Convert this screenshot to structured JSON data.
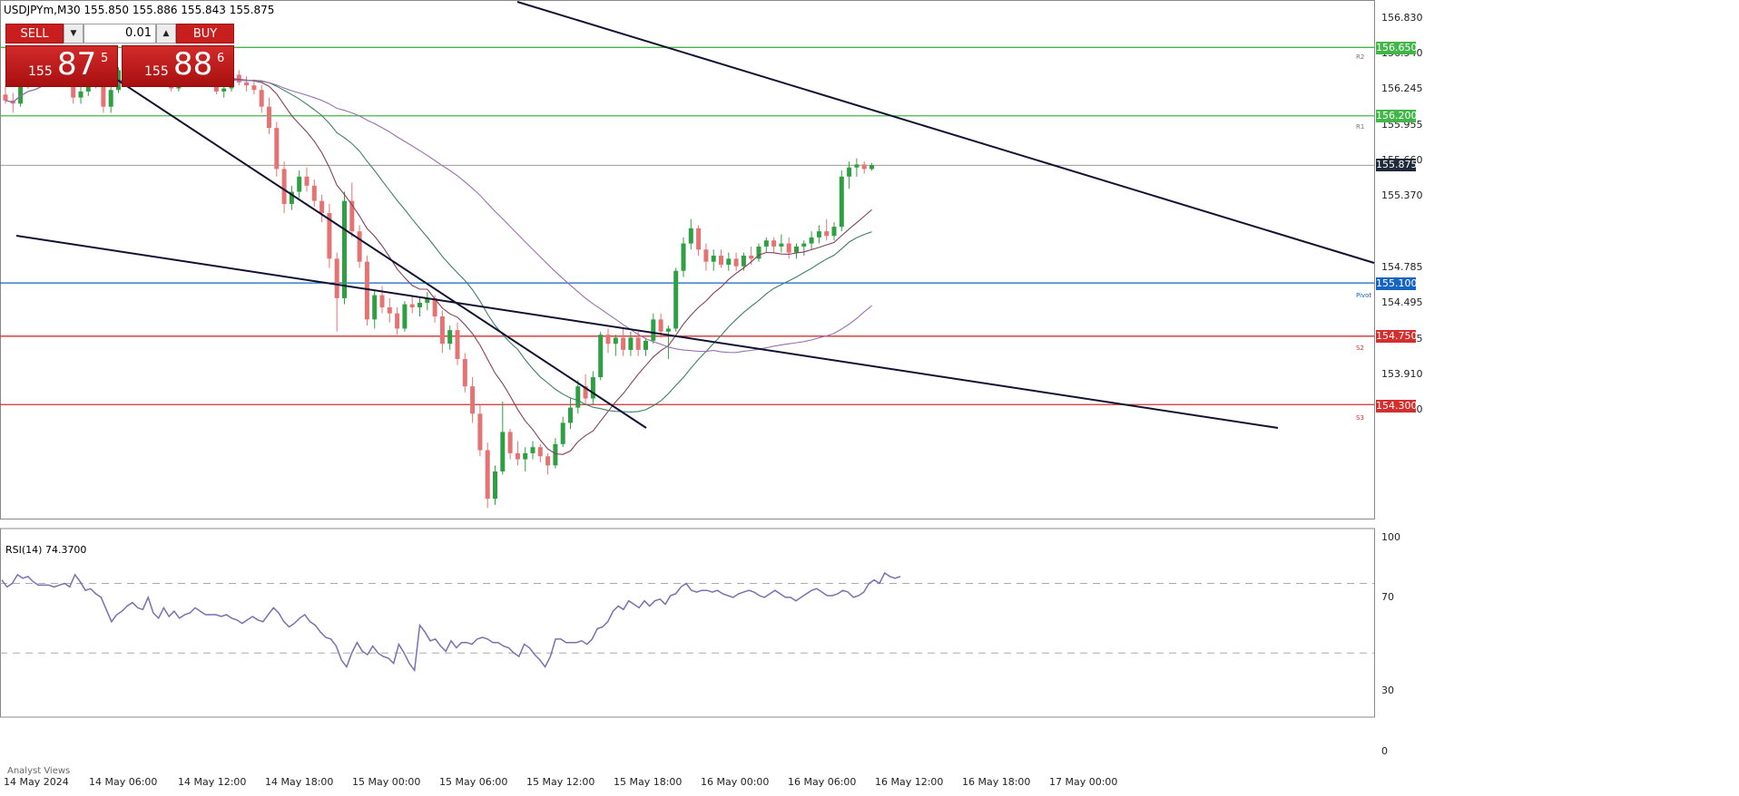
{
  "chart": {
    "title": "USDJPYm,M30  155.850 155.886 155.843 155.875",
    "current_price": "155.875"
  },
  "trade_panel": {
    "sell_label": "SELL",
    "buy_label": "BUY",
    "lot_size": "0.01",
    "sell_price_prefix": "155",
    "sell_price_big": "87",
    "sell_price_sup": "5",
    "buy_price_prefix": "155",
    "buy_price_big": "88",
    "buy_price_sup": "6"
  },
  "price_axis": [
    "156.830",
    "156.540",
    "156.245",
    "155.955",
    "155.660",
    "155.370",
    "154.785",
    "154.495",
    "154.205",
    "153.910",
    "153.620"
  ],
  "levels": [
    {
      "name": "R2",
      "value": "156.650",
      "color": "#43b649"
    },
    {
      "name": "R1",
      "value": "156.200",
      "color": "#43b649"
    },
    {
      "name": "Pivot",
      "value": "155.100",
      "color": "#1565c0"
    },
    {
      "name": "S2",
      "value": "154.750",
      "color": "#d32f2f"
    },
    {
      "name": "S3",
      "value": "154.300",
      "color": "#d32f2f"
    }
  ],
  "rsi": {
    "label": "RSI(14) 74.3700",
    "axis": [
      "100",
      "70",
      "30",
      "0"
    ]
  },
  "time_axis": [
    "14 May 2024",
    "14 May 06:00",
    "14 May 12:00",
    "14 May 18:00",
    "15 May 00:00",
    "15 May 06:00",
    "15 May 12:00",
    "15 May 18:00",
    "16 May 00:00",
    "16 May 06:00",
    "16 May 12:00",
    "16 May 18:00",
    "17 May 00:00"
  ],
  "analyst_label": "Analyst Views",
  "colors": {
    "bull": "#2ea043",
    "bear": "#e57373",
    "rsi_line": "#7a6fb0",
    "channel": "#111133"
  },
  "chart_data": {
    "type": "candlestick",
    "symbol": "USDJPYm",
    "timeframe": "M30",
    "y_range": [
      153.55,
      156.95
    ],
    "candles": [
      {
        "o": 156.34,
        "h": 156.4,
        "l": 156.28,
        "c": 156.3
      },
      {
        "o": 156.3,
        "h": 156.35,
        "l": 156.22,
        "c": 156.28
      },
      {
        "o": 156.28,
        "h": 156.44,
        "l": 156.26,
        "c": 156.41
      },
      {
        "o": 156.41,
        "h": 156.48,
        "l": 156.38,
        "c": 156.45
      },
      {
        "o": 156.45,
        "h": 156.5,
        "l": 156.4,
        "c": 156.43
      },
      {
        "o": 156.43,
        "h": 156.55,
        "l": 156.4,
        "c": 156.52
      },
      {
        "o": 156.52,
        "h": 156.6,
        "l": 156.48,
        "c": 156.57
      },
      {
        "o": 156.57,
        "h": 156.62,
        "l": 156.5,
        "c": 156.53
      },
      {
        "o": 156.53,
        "h": 156.58,
        "l": 156.42,
        "c": 156.45
      },
      {
        "o": 156.45,
        "h": 156.5,
        "l": 156.28,
        "c": 156.32
      },
      {
        "o": 156.32,
        "h": 156.4,
        "l": 156.28,
        "c": 156.36
      },
      {
        "o": 156.36,
        "h": 156.45,
        "l": 156.33,
        "c": 156.42
      },
      {
        "o": 156.42,
        "h": 156.48,
        "l": 156.38,
        "c": 156.4
      },
      {
        "o": 156.4,
        "h": 156.46,
        "l": 156.22,
        "c": 156.26
      },
      {
        "o": 156.26,
        "h": 156.4,
        "l": 156.22,
        "c": 156.37
      },
      {
        "o": 156.37,
        "h": 156.52,
        "l": 156.35,
        "c": 156.5
      },
      {
        "o": 156.5,
        "h": 156.58,
        "l": 156.46,
        "c": 156.55
      },
      {
        "o": 156.55,
        "h": 156.6,
        "l": 156.5,
        "c": 156.52
      },
      {
        "o": 156.52,
        "h": 156.56,
        "l": 156.46,
        "c": 156.48
      },
      {
        "o": 156.48,
        "h": 156.52,
        "l": 156.44,
        "c": 156.5
      },
      {
        "o": 156.5,
        "h": 156.54,
        "l": 156.44,
        "c": 156.46
      },
      {
        "o": 156.46,
        "h": 156.5,
        "l": 156.4,
        "c": 156.44
      },
      {
        "o": 156.44,
        "h": 156.48,
        "l": 156.36,
        "c": 156.38
      },
      {
        "o": 156.38,
        "h": 156.44,
        "l": 156.36,
        "c": 156.42
      },
      {
        "o": 156.42,
        "h": 156.48,
        "l": 156.4,
        "c": 156.45
      },
      {
        "o": 156.45,
        "h": 156.52,
        "l": 156.42,
        "c": 156.49
      },
      {
        "o": 156.49,
        "h": 156.58,
        "l": 156.46,
        "c": 156.55
      },
      {
        "o": 156.55,
        "h": 156.6,
        "l": 156.44,
        "c": 156.46
      },
      {
        "o": 156.46,
        "h": 156.5,
        "l": 156.34,
        "c": 156.36
      },
      {
        "o": 156.36,
        "h": 156.42,
        "l": 156.32,
        "c": 156.38
      },
      {
        "o": 156.38,
        "h": 156.5,
        "l": 156.36,
        "c": 156.47
      },
      {
        "o": 156.47,
        "h": 156.5,
        "l": 156.4,
        "c": 156.42
      },
      {
        "o": 156.42,
        "h": 156.46,
        "l": 156.36,
        "c": 156.4
      },
      {
        "o": 156.4,
        "h": 156.44,
        "l": 156.34,
        "c": 156.37
      },
      {
        "o": 156.37,
        "h": 156.4,
        "l": 156.22,
        "c": 156.26
      },
      {
        "o": 156.26,
        "h": 156.32,
        "l": 156.08,
        "c": 156.12
      },
      {
        "o": 156.12,
        "h": 156.16,
        "l": 155.8,
        "c": 155.85
      },
      {
        "o": 155.85,
        "h": 155.9,
        "l": 155.56,
        "c": 155.62
      },
      {
        "o": 155.62,
        "h": 155.74,
        "l": 155.58,
        "c": 155.7
      },
      {
        "o": 155.7,
        "h": 155.84,
        "l": 155.66,
        "c": 155.8
      },
      {
        "o": 155.8,
        "h": 155.86,
        "l": 155.7,
        "c": 155.74
      },
      {
        "o": 155.74,
        "h": 155.78,
        "l": 155.6,
        "c": 155.64
      },
      {
        "o": 155.64,
        "h": 155.68,
        "l": 155.5,
        "c": 155.56
      },
      {
        "o": 155.56,
        "h": 155.62,
        "l": 155.2,
        "c": 155.26
      },
      {
        "o": 155.26,
        "h": 155.3,
        "l": 154.78,
        "c": 155.0
      },
      {
        "o": 155.0,
        "h": 155.7,
        "l": 154.96,
        "c": 155.64
      },
      {
        "o": 155.64,
        "h": 155.76,
        "l": 155.4,
        "c": 155.44
      },
      {
        "o": 155.44,
        "h": 155.48,
        "l": 155.2,
        "c": 155.24
      },
      {
        "o": 155.24,
        "h": 155.28,
        "l": 154.82,
        "c": 154.86
      },
      {
        "o": 154.86,
        "h": 155.05,
        "l": 154.8,
        "c": 155.02
      },
      {
        "o": 155.02,
        "h": 155.08,
        "l": 154.9,
        "c": 154.94
      },
      {
        "o": 154.94,
        "h": 155.0,
        "l": 154.84,
        "c": 154.9
      },
      {
        "o": 154.9,
        "h": 154.94,
        "l": 154.76,
        "c": 154.8
      },
      {
        "o": 154.8,
        "h": 154.98,
        "l": 154.78,
        "c": 154.96
      },
      {
        "o": 154.96,
        "h": 155.02,
        "l": 154.9,
        "c": 154.94
      },
      {
        "o": 154.94,
        "h": 155.0,
        "l": 154.88,
        "c": 154.97
      },
      {
        "o": 154.97,
        "h": 155.04,
        "l": 154.92,
        "c": 155.0
      },
      {
        "o": 155.0,
        "h": 155.02,
        "l": 154.84,
        "c": 154.88
      },
      {
        "o": 154.88,
        "h": 154.92,
        "l": 154.64,
        "c": 154.7
      },
      {
        "o": 154.7,
        "h": 154.82,
        "l": 154.66,
        "c": 154.79
      },
      {
        "o": 154.79,
        "h": 154.84,
        "l": 154.56,
        "c": 154.6
      },
      {
        "o": 154.6,
        "h": 154.64,
        "l": 154.38,
        "c": 154.42
      },
      {
        "o": 154.42,
        "h": 154.48,
        "l": 154.18,
        "c": 154.24
      },
      {
        "o": 154.24,
        "h": 154.3,
        "l": 153.96,
        "c": 154.0
      },
      {
        "o": 154.0,
        "h": 154.05,
        "l": 153.62,
        "c": 153.68
      },
      {
        "o": 153.68,
        "h": 153.9,
        "l": 153.64,
        "c": 153.86
      },
      {
        "o": 153.86,
        "h": 154.32,
        "l": 153.84,
        "c": 154.12
      },
      {
        "o": 154.12,
        "h": 154.14,
        "l": 153.94,
        "c": 153.98
      },
      {
        "o": 153.98,
        "h": 154.06,
        "l": 153.9,
        "c": 153.94
      },
      {
        "o": 153.94,
        "h": 154.02,
        "l": 153.86,
        "c": 153.98
      },
      {
        "o": 153.98,
        "h": 154.06,
        "l": 153.94,
        "c": 154.02
      },
      {
        "o": 154.02,
        "h": 154.04,
        "l": 153.92,
        "c": 153.96
      },
      {
        "o": 153.96,
        "h": 153.98,
        "l": 153.84,
        "c": 153.9
      },
      {
        "o": 153.9,
        "h": 154.08,
        "l": 153.88,
        "c": 154.04
      },
      {
        "o": 154.04,
        "h": 154.22,
        "l": 154.02,
        "c": 154.18
      },
      {
        "o": 154.18,
        "h": 154.34,
        "l": 154.14,
        "c": 154.28
      },
      {
        "o": 154.28,
        "h": 154.46,
        "l": 154.24,
        "c": 154.42
      },
      {
        "o": 154.42,
        "h": 154.5,
        "l": 154.3,
        "c": 154.34
      },
      {
        "o": 154.34,
        "h": 154.52,
        "l": 154.3,
        "c": 154.48
      },
      {
        "o": 154.48,
        "h": 154.78,
        "l": 154.46,
        "c": 154.76
      },
      {
        "o": 154.76,
        "h": 154.8,
        "l": 154.64,
        "c": 154.7
      },
      {
        "o": 154.7,
        "h": 154.76,
        "l": 154.62,
        "c": 154.74
      },
      {
        "o": 154.74,
        "h": 154.8,
        "l": 154.62,
        "c": 154.66
      },
      {
        "o": 154.66,
        "h": 154.78,
        "l": 154.62,
        "c": 154.74
      },
      {
        "o": 154.74,
        "h": 154.78,
        "l": 154.62,
        "c": 154.66
      },
      {
        "o": 154.66,
        "h": 154.74,
        "l": 154.62,
        "c": 154.72
      },
      {
        "o": 154.72,
        "h": 154.9,
        "l": 154.7,
        "c": 154.86
      },
      {
        "o": 154.86,
        "h": 154.9,
        "l": 154.74,
        "c": 154.78
      },
      {
        "o": 154.78,
        "h": 154.82,
        "l": 154.6,
        "c": 154.8
      },
      {
        "o": 154.8,
        "h": 155.2,
        "l": 154.78,
        "c": 155.18
      },
      {
        "o": 155.18,
        "h": 155.4,
        "l": 155.14,
        "c": 155.36
      },
      {
        "o": 155.36,
        "h": 155.52,
        "l": 155.32,
        "c": 155.46
      },
      {
        "o": 155.46,
        "h": 155.48,
        "l": 155.28,
        "c": 155.32
      },
      {
        "o": 155.32,
        "h": 155.36,
        "l": 155.18,
        "c": 155.24
      },
      {
        "o": 155.24,
        "h": 155.32,
        "l": 155.18,
        "c": 155.28
      },
      {
        "o": 155.28,
        "h": 155.32,
        "l": 155.2,
        "c": 155.22
      },
      {
        "o": 155.22,
        "h": 155.3,
        "l": 155.18,
        "c": 155.26
      },
      {
        "o": 155.26,
        "h": 155.3,
        "l": 155.18,
        "c": 155.21
      },
      {
        "o": 155.21,
        "h": 155.3,
        "l": 155.18,
        "c": 155.28
      },
      {
        "o": 155.28,
        "h": 155.34,
        "l": 155.22,
        "c": 155.26
      },
      {
        "o": 155.26,
        "h": 155.36,
        "l": 155.24,
        "c": 155.34
      },
      {
        "o": 155.34,
        "h": 155.4,
        "l": 155.3,
        "c": 155.38
      },
      {
        "o": 155.38,
        "h": 155.4,
        "l": 155.3,
        "c": 155.34
      },
      {
        "o": 155.34,
        "h": 155.42,
        "l": 155.3,
        "c": 155.36
      },
      {
        "o": 155.36,
        "h": 155.4,
        "l": 155.26,
        "c": 155.3
      },
      {
        "o": 155.3,
        "h": 155.36,
        "l": 155.26,
        "c": 155.34
      },
      {
        "o": 155.34,
        "h": 155.38,
        "l": 155.28,
        "c": 155.36
      },
      {
        "o": 155.36,
        "h": 155.44,
        "l": 155.32,
        "c": 155.4
      },
      {
        "o": 155.4,
        "h": 155.48,
        "l": 155.36,
        "c": 155.44
      },
      {
        "o": 155.44,
        "h": 155.52,
        "l": 155.38,
        "c": 155.41
      },
      {
        "o": 155.41,
        "h": 155.5,
        "l": 155.38,
        "c": 155.47
      },
      {
        "o": 155.47,
        "h": 155.84,
        "l": 155.44,
        "c": 155.8
      },
      {
        "o": 155.8,
        "h": 155.9,
        "l": 155.72,
        "c": 155.86
      },
      {
        "o": 155.86,
        "h": 155.92,
        "l": 155.8,
        "c": 155.88
      },
      {
        "o": 155.88,
        "h": 155.9,
        "l": 155.82,
        "c": 155.85
      },
      {
        "o": 155.85,
        "h": 155.89,
        "l": 155.84,
        "c": 155.875
      }
    ],
    "rsi_values": [
      72,
      68,
      70,
      75,
      73,
      74,
      71,
      69,
      69,
      69,
      68,
      69,
      70,
      68,
      75,
      71,
      66,
      67,
      64,
      62,
      55,
      48,
      52,
      54,
      57,
      59,
      56,
      55,
      62,
      53,
      50,
      56,
      51,
      54,
      50,
      52,
      53,
      56,
      54,
      52,
      52,
      52,
      51,
      52,
      50,
      49,
      47,
      49,
      51,
      49,
      48,
      52,
      56,
      53,
      48,
      45,
      47,
      50,
      52,
      48,
      46,
      42,
      39,
      38,
      34,
      26,
      22,
      30,
      36,
      31,
      29,
      34,
      30,
      28,
      27,
      24,
      35,
      30,
      24,
      20,
      46,
      42,
      37,
      38,
      34,
      31,
      37,
      33,
      36,
      36,
      35,
      38,
      39,
      38,
      36,
      36,
      34,
      33,
      30,
      28,
      35,
      33,
      29,
      26,
      22,
      28,
      38,
      38,
      36,
      36,
      36,
      37,
      35,
      38,
      44,
      45,
      48,
      54,
      57,
      55,
      60,
      58,
      56,
      60,
      57,
      60,
      61,
      58,
      63,
      64,
      68,
      70,
      66,
      65,
      66,
      66,
      65,
      66,
      64,
      63,
      62,
      64,
      65,
      66,
      65,
      63,
      62,
      64,
      66,
      64,
      62,
      62,
      60,
      62,
      64,
      66,
      67,
      65,
      63,
      63,
      64,
      66,
      65,
      62,
      63,
      65,
      70,
      72,
      70,
      76,
      74,
      73,
      74
    ]
  }
}
